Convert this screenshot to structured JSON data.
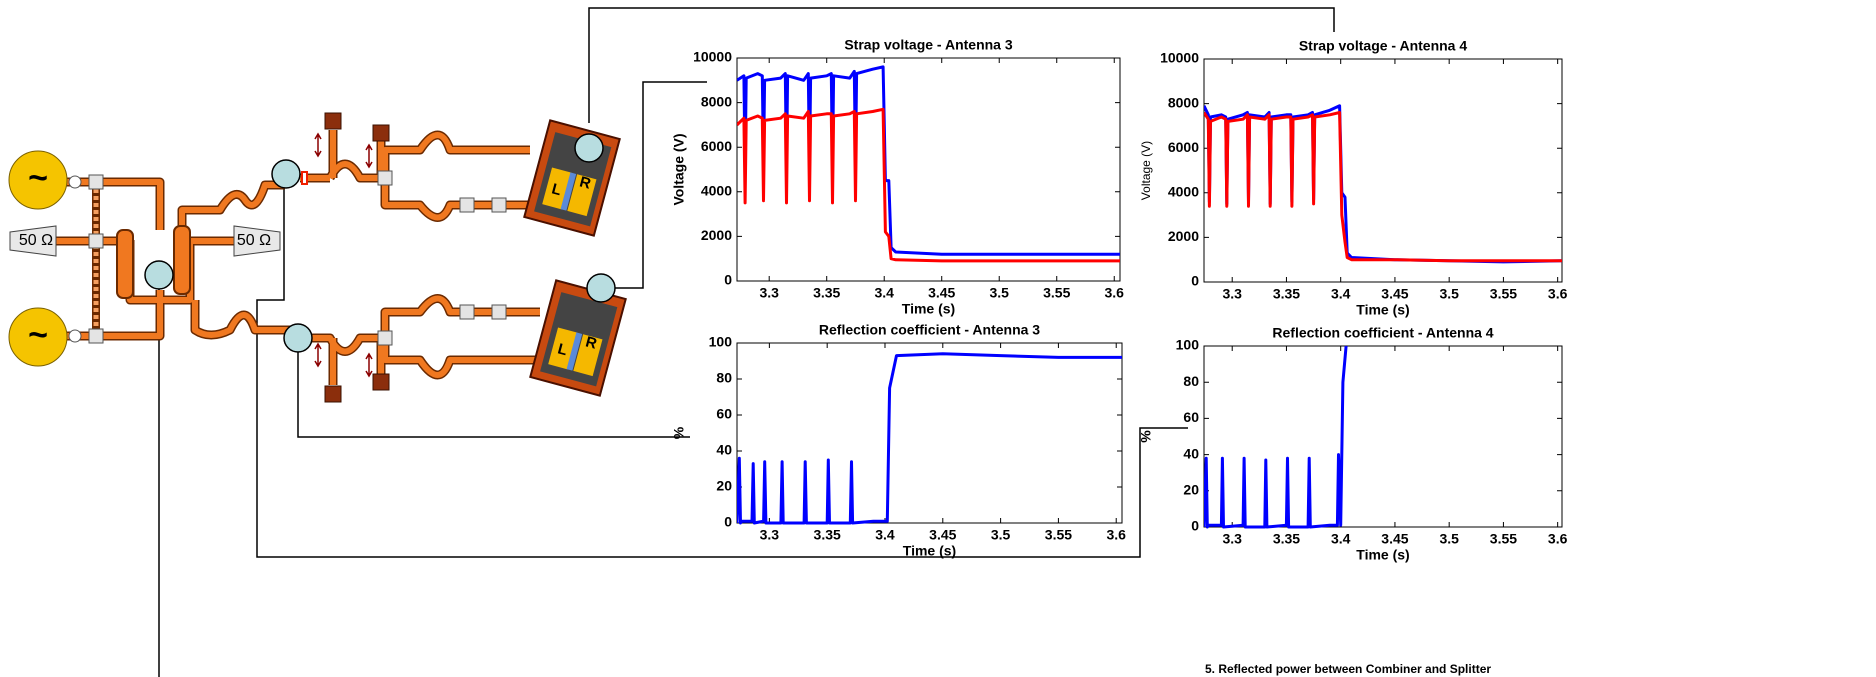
{
  "chart_data": [
    {
      "type": "line",
      "title": "Strap voltage - Antenna 3",
      "x_label": "Time (s)",
      "y_label": "Voltage (V)",
      "x": [
        3.272,
        3.278,
        3.279,
        3.28,
        3.29,
        3.294,
        3.295,
        3.296,
        3.31,
        3.314,
        3.315,
        3.316,
        3.33,
        3.334,
        3.335,
        3.336,
        3.35,
        3.354,
        3.355,
        3.356,
        3.37,
        3.374,
        3.375,
        3.376,
        3.39,
        3.399,
        3.401,
        3.404,
        3.406,
        3.41,
        3.45,
        3.5,
        3.55,
        3.605
      ],
      "series": [
        {
          "color": "#0000ff",
          "values": [
            9000,
            9200,
            5000,
            9100,
            9300,
            9200,
            5200,
            9000,
            9100,
            9300,
            5000,
            9200,
            9000,
            9300,
            5100,
            9100,
            9200,
            9300,
            5000,
            9200,
            9100,
            9400,
            5200,
            9300,
            9500,
            9600,
            4500,
            4500,
            1500,
            1300,
            1200,
            1200,
            1200,
            1200
          ]
        },
        {
          "color": "#ff0000",
          "values": [
            7000,
            7300,
            3500,
            7200,
            7400,
            7300,
            3600,
            7200,
            7300,
            7500,
            3500,
            7400,
            7300,
            7600,
            3600,
            7400,
            7500,
            7500,
            3500,
            7400,
            7500,
            7600,
            3600,
            7500,
            7600,
            7700,
            2200,
            2000,
            1000,
            950,
            900,
            900,
            900,
            900
          ]
        }
      ],
      "xlim": [
        3.272,
        3.605
      ],
      "xticks": [
        3.3,
        3.35,
        3.4,
        3.45,
        3.5,
        3.55,
        3.6
      ],
      "ylim": [
        0,
        10000
      ],
      "yticks": [
        0,
        2000,
        4000,
        6000,
        8000,
        10000
      ]
    },
    {
      "type": "line",
      "title": "Strap voltage - Antenna 4",
      "x_label": "Time (s)",
      "y_label": "Voltage (V)",
      "x": [
        3.274,
        3.278,
        3.279,
        3.28,
        3.29,
        3.294,
        3.295,
        3.296,
        3.31,
        3.314,
        3.315,
        3.316,
        3.33,
        3.334,
        3.335,
        3.336,
        3.35,
        3.354,
        3.355,
        3.356,
        3.37,
        3.374,
        3.375,
        3.376,
        3.39,
        3.399,
        3.401,
        3.404,
        3.406,
        3.41,
        3.45,
        3.5,
        3.55,
        3.604
      ],
      "series": [
        {
          "color": "#0000ff",
          "values": [
            7900,
            7500,
            3600,
            7400,
            7500,
            7400,
            3500,
            7300,
            7500,
            7600,
            3600,
            7500,
            7400,
            7600,
            3500,
            7400,
            7500,
            7500,
            3600,
            7400,
            7500,
            7600,
            3700,
            7500,
            7700,
            7900,
            4000,
            3800,
            1300,
            1100,
            1000,
            950,
            900,
            950
          ]
        },
        {
          "color": "#ff0000",
          "values": [
            7600,
            7300,
            3400,
            7200,
            7400,
            7300,
            3400,
            7200,
            7300,
            7500,
            3400,
            7400,
            7300,
            7500,
            3400,
            7300,
            7400,
            7400,
            3400,
            7300,
            7400,
            7500,
            3500,
            7400,
            7500,
            7600,
            3000,
            1800,
            1100,
            1000,
            1000,
            950,
            950,
            950
          ]
        }
      ],
      "xlim": [
        3.274,
        3.604
      ],
      "xticks": [
        3.3,
        3.35,
        3.4,
        3.45,
        3.5,
        3.55,
        3.6
      ],
      "ylim": [
        0,
        10000
      ],
      "yticks": [
        0,
        2000,
        4000,
        6000,
        8000,
        10000
      ]
    },
    {
      "type": "line",
      "title": "Reflection coefficient - Antenna 3",
      "x_label": "Time (s)",
      "y_label": "%",
      "x": [
        3.272,
        3.274,
        3.275,
        3.276,
        3.285,
        3.286,
        3.287,
        3.295,
        3.296,
        3.297,
        3.31,
        3.311,
        3.312,
        3.33,
        3.331,
        3.332,
        3.35,
        3.351,
        3.352,
        3.37,
        3.371,
        3.372,
        3.39,
        3.402,
        3.404,
        3.41,
        3.45,
        3.5,
        3.55,
        3.605
      ],
      "series": [
        {
          "color": "#0000ff",
          "values": [
            0,
            36,
            0,
            1,
            1,
            33,
            0,
            1,
            34,
            0,
            0,
            34,
            0,
            0,
            34,
            0,
            0,
            35,
            0,
            0,
            34,
            0,
            1,
            1,
            75,
            93,
            94,
            93,
            92,
            92
          ]
        }
      ],
      "xlim": [
        3.272,
        3.605
      ],
      "xticks": [
        3.3,
        3.35,
        3.4,
        3.45,
        3.5,
        3.55,
        3.6
      ],
      "ylim": [
        0,
        100
      ],
      "yticks": [
        0,
        20,
        40,
        60,
        80,
        100
      ]
    },
    {
      "type": "line",
      "title": "Reflection coefficient - Antenna 4",
      "x_label": "Time (s)",
      "y_label": "%",
      "x": [
        3.274,
        3.276,
        3.277,
        3.278,
        3.29,
        3.291,
        3.292,
        3.31,
        3.311,
        3.312,
        3.33,
        3.331,
        3.332,
        3.35,
        3.351,
        3.352,
        3.37,
        3.371,
        3.372,
        3.39,
        3.397,
        3.398,
        3.4,
        3.402,
        3.405
      ],
      "series": [
        {
          "color": "#0000ff",
          "values": [
            0,
            38,
            0,
            1,
            1,
            38,
            0,
            1,
            38,
            0,
            0,
            37,
            0,
            1,
            38,
            0,
            0,
            38,
            0,
            1,
            1,
            40,
            1,
            80,
            100
          ]
        }
      ],
      "xlim": [
        3.274,
        3.604
      ],
      "xticks": [
        3.3,
        3.35,
        3.4,
        3.45,
        3.5,
        3.55,
        3.6
      ],
      "ylim": [
        0,
        100
      ],
      "yticks": [
        0,
        20,
        40,
        60,
        80,
        100
      ]
    }
  ],
  "diagram": {
    "generators": [
      "~",
      "~"
    ],
    "loads": [
      "50 Ω",
      "50 Ω"
    ],
    "antennas": [
      {
        "left": "L",
        "right": "R"
      },
      {
        "left": "L",
        "right": "R"
      }
    ],
    "caption": "5. Reflected power between Combiner and Splitter"
  }
}
